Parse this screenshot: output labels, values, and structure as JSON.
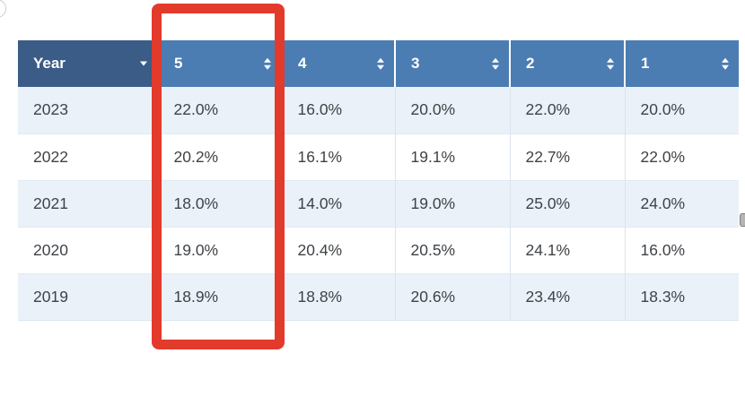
{
  "table": {
    "columns": [
      {
        "label": "Year",
        "sort": "descending"
      },
      {
        "label": "5",
        "sort": "unsorted"
      },
      {
        "label": "4",
        "sort": "unsorted"
      },
      {
        "label": "3",
        "sort": "unsorted"
      },
      {
        "label": "2",
        "sort": "unsorted"
      },
      {
        "label": "1",
        "sort": "unsorted"
      }
    ],
    "rows": [
      {
        "year": "2023",
        "values": [
          "22.0%",
          "16.0%",
          "20.0%",
          "22.0%",
          "20.0%"
        ]
      },
      {
        "year": "2022",
        "values": [
          "20.2%",
          "16.1%",
          "19.1%",
          "22.7%",
          "22.0%"
        ]
      },
      {
        "year": "2021",
        "values": [
          "18.0%",
          "14.0%",
          "19.0%",
          "25.0%",
          "24.0%"
        ]
      },
      {
        "year": "2020",
        "values": [
          "19.0%",
          "20.4%",
          "20.5%",
          "24.1%",
          "16.0%"
        ]
      },
      {
        "year": "2019",
        "values": [
          "18.9%",
          "18.8%",
          "20.6%",
          "23.4%",
          "18.3%"
        ]
      }
    ]
  },
  "annotation": {
    "shape": "rectangle",
    "highlighted_column": "5",
    "color": "#e23a2b"
  },
  "colors": {
    "header_sorted_bg": "#3b5c86",
    "header_bg": "#4b7db3",
    "row_alt_bg": "#eaf1f8",
    "row_bg": "#ffffff",
    "body_text": "#3f4347",
    "header_text": "#ffffff"
  },
  "chart_data": {
    "type": "table",
    "title": "",
    "columns": [
      "Year",
      "5",
      "4",
      "3",
      "2",
      "1"
    ],
    "rows": [
      [
        "2023",
        "22.0%",
        "16.0%",
        "20.0%",
        "22.0%",
        "20.0%"
      ],
      [
        "2022",
        "20.2%",
        "16.1%",
        "19.1%",
        "22.7%",
        "22.0%"
      ],
      [
        "2021",
        "18.0%",
        "14.0%",
        "19.0%",
        "25.0%",
        "24.0%"
      ],
      [
        "2020",
        "19.0%",
        "20.4%",
        "20.5%",
        "24.1%",
        "16.0%"
      ],
      [
        "2019",
        "18.9%",
        "18.8%",
        "20.6%",
        "23.4%",
        "18.3%"
      ]
    ]
  }
}
